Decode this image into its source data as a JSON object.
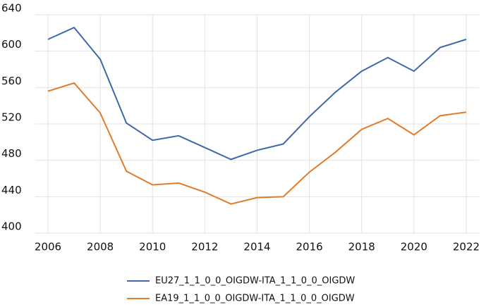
{
  "chart_data": {
    "type": "line",
    "x": [
      2006,
      2007,
      2008,
      2009,
      2010,
      2011,
      2012,
      2013,
      2014,
      2015,
      2016,
      2017,
      2018,
      2019,
      2020,
      2021,
      2022
    ],
    "series": [
      {
        "name": "EU27_1_1_0_0_OIGDW-ITA_1_1_0_0_OIGDW",
        "color": "#4068a8",
        "values": [
          613,
          626,
          591,
          521,
          502,
          507,
          494,
          481,
          491,
          498,
          528,
          555,
          578,
          593,
          578,
          604,
          613
        ]
      },
      {
        "name": "EA19_1_1_0_0_OIGDW-ITA_1_1_0_0_OIGDW",
        "color": "#e07b2a",
        "values": [
          556,
          565,
          532,
          468,
          453,
          455,
          445,
          432,
          439,
          440,
          467,
          489,
          514,
          526,
          508,
          529,
          533
        ]
      }
    ],
    "xlim": [
      2005.5,
      2022.5
    ],
    "xticks": [
      2006,
      2008,
      2010,
      2012,
      2014,
      2016,
      2018,
      2020,
      2022
    ],
    "ylim": [
      400,
      640
    ],
    "yticks": [
      400,
      440,
      480,
      520,
      560,
      600,
      640
    ],
    "grid": true,
    "legend": "bottom"
  }
}
